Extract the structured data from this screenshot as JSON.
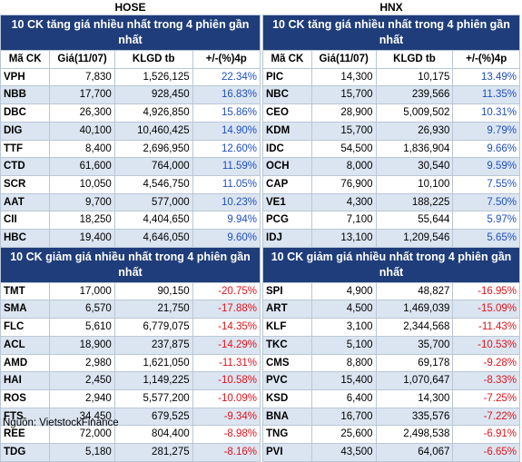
{
  "hose": {
    "exchange": "HOSE",
    "gain_title": "10 CK tăng giá nhiều nhất trong 4 phiên gần nhất",
    "columns": [
      "Mã CK",
      "Giá(11/07)",
      "KLGD tb",
      "+/-(%)4p"
    ],
    "gainers": [
      [
        "VPH",
        "7,830",
        "1,526,125",
        "22.34%"
      ],
      [
        "NBB",
        "17,700",
        "928,450",
        "16.83%"
      ],
      [
        "DBC",
        "26,300",
        "4,926,850",
        "15.86%"
      ],
      [
        "DIG",
        "40,100",
        "10,460,425",
        "14.90%"
      ],
      [
        "TTF",
        "8,400",
        "2,696,950",
        "12.60%"
      ],
      [
        "CTD",
        "61,600",
        "764,000",
        "11.59%"
      ],
      [
        "SCR",
        "10,050",
        "4,546,750",
        "11.05%"
      ],
      [
        "AAT",
        "9,700",
        "577,000",
        "10.23%"
      ],
      [
        "CII",
        "18,250",
        "4,404,650",
        "9.94%"
      ],
      [
        "HBC",
        "19,400",
        "4,646,050",
        "9.60%"
      ]
    ],
    "loss_title": "10 CK giảm giá nhiều nhất trong 4 phiên gần nhất",
    "losers": [
      [
        "TMT",
        "17,000",
        "90,150",
        "-20.75%"
      ],
      [
        "SMA",
        "6,570",
        "21,750",
        "-17.88%"
      ],
      [
        "FLC",
        "5,610",
        "6,779,075",
        "-14.35%"
      ],
      [
        "ACL",
        "18,900",
        "237,875",
        "-14.29%"
      ],
      [
        "AMD",
        "2,980",
        "1,621,050",
        "-11.31%"
      ],
      [
        "HAI",
        "2,450",
        "1,149,225",
        "-10.58%"
      ],
      [
        "ROS",
        "2,940",
        "5,577,200",
        "-10.09%"
      ],
      [
        "FTS",
        "34,450",
        "679,525",
        "-9.34%"
      ],
      [
        "REE",
        "72,000",
        "804,400",
        "-8.98%"
      ],
      [
        "TDG",
        "5,180",
        "281,275",
        "-8.16%"
      ]
    ]
  },
  "hnx": {
    "exchange": "HNX",
    "gain_title": "10 CK tăng giá nhiều nhất trong 4 phiên gần nhất",
    "columns": [
      "Mã CK",
      "Giá(11/07)",
      "KLGD tb",
      "+/-(%)4p"
    ],
    "gainers": [
      [
        "PIC",
        "14,300",
        "10,175",
        "13.49%"
      ],
      [
        "NBC",
        "15,700",
        "239,566",
        "11.35%"
      ],
      [
        "CEO",
        "28,900",
        "5,009,502",
        "10.31%"
      ],
      [
        "KDM",
        "15,700",
        "26,930",
        "9.79%"
      ],
      [
        "IDC",
        "54,500",
        "1,836,904",
        "9.66%"
      ],
      [
        "OCH",
        "8,000",
        "30,540",
        "9.59%"
      ],
      [
        "CAP",
        "76,900",
        "10,100",
        "7.55%"
      ],
      [
        "VE1",
        "4,300",
        "188,225",
        "7.50%"
      ],
      [
        "PCG",
        "7,100",
        "55,644",
        "5.97%"
      ],
      [
        "IDJ",
        "13,100",
        "1,209,546",
        "5.65%"
      ]
    ],
    "loss_title": "10 CK giảm giá nhiều nhất trong 4 phiên gần nhất",
    "losers": [
      [
        "SPI",
        "4,900",
        "48,827",
        "-16.95%"
      ],
      [
        "ART",
        "4,500",
        "1,469,039",
        "-15.09%"
      ],
      [
        "KLF",
        "3,100",
        "2,344,568",
        "-11.43%"
      ],
      [
        "TKC",
        "5,100",
        "35,700",
        "-10.53%"
      ],
      [
        "CMS",
        "8,800",
        "69,178",
        "-9.28%"
      ],
      [
        "PVC",
        "15,400",
        "1,070,647",
        "-8.33%"
      ],
      [
        "KSD",
        "6,400",
        "14,300",
        "-7.25%"
      ],
      [
        "BNA",
        "16,700",
        "335,576",
        "-7.22%"
      ],
      [
        "TNG",
        "25,600",
        "2,498,538",
        "-6.91%"
      ],
      [
        "PVI",
        "43,500",
        "64,067",
        "-6.65%"
      ]
    ]
  },
  "source": "Nguồn: VietstockFinance",
  "colors": {
    "header_bg": "#1f3d7a",
    "alt_row": "#dbe5f1",
    "positive": "#1f4fbf",
    "negative": "#e0131b"
  }
}
